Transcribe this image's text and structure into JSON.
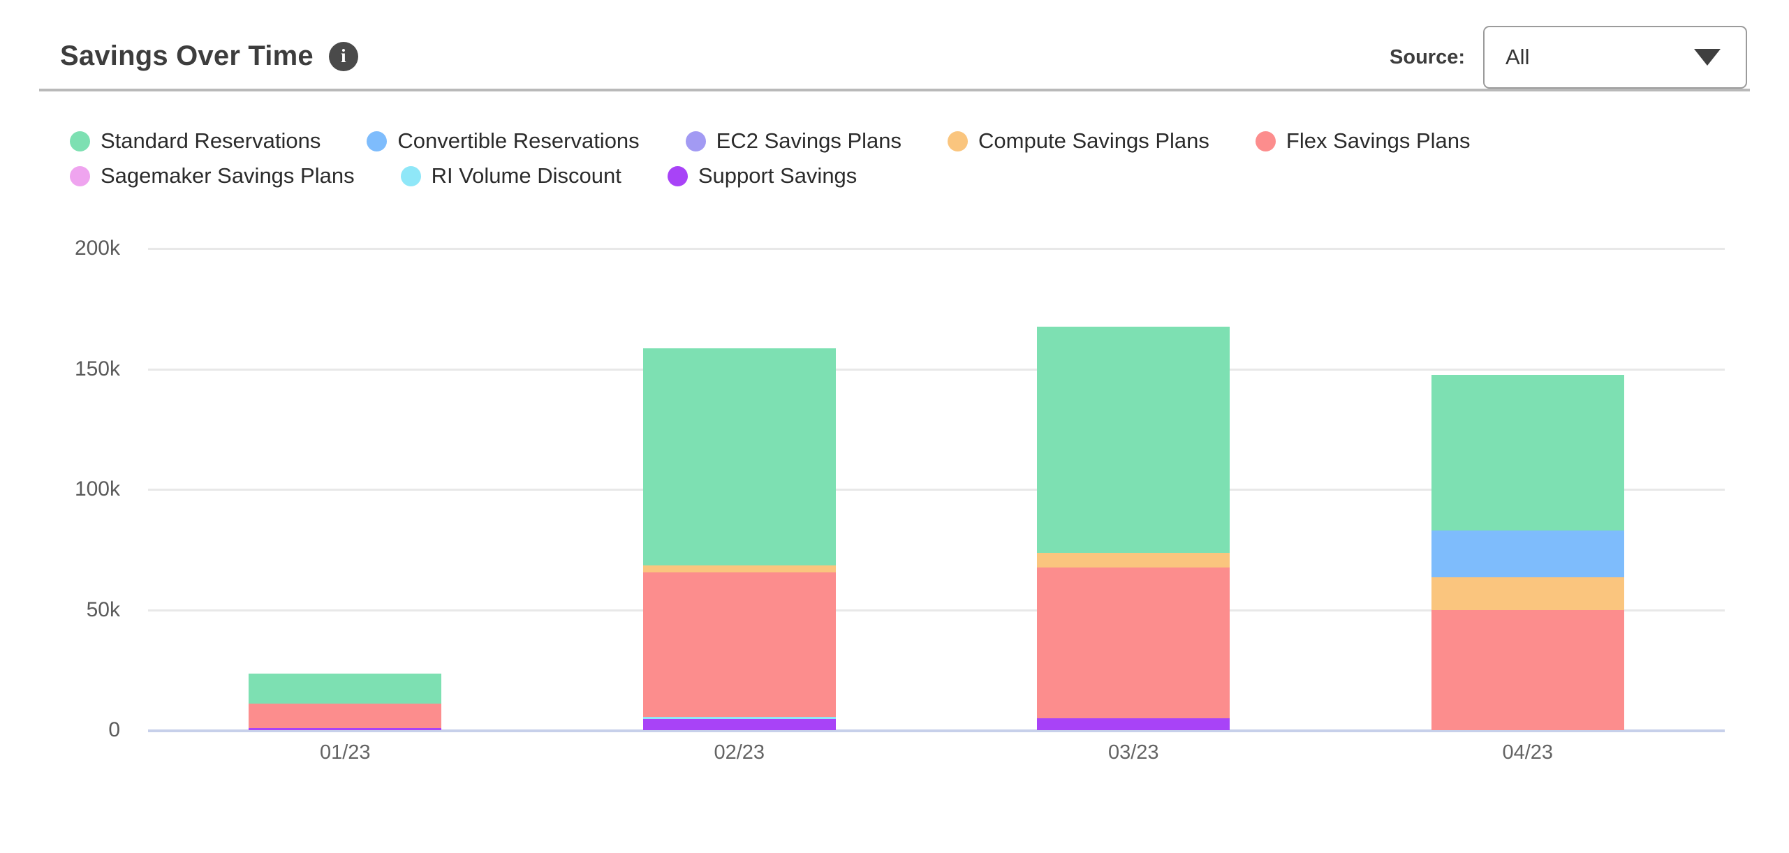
{
  "header": {
    "title": "Savings Over Time",
    "info_icon_glyph": "i"
  },
  "source": {
    "label": "Source:",
    "value": "All"
  },
  "colors": {
    "divider": "#b9b9b9",
    "grid": "#e8e8e8",
    "axis_line": "#c7d0ea",
    "standard_reservations": "#7de0b2",
    "convertible_reservations": "#7ebcfc",
    "ec2_savings_plans": "#a29af3",
    "compute_savings_plans": "#fac57e",
    "flex_savings_plans": "#fc8d8d",
    "sagemaker_savings_plans": "#efa4ef",
    "ri_volume_discount": "#8fe7f8",
    "support_savings": "#a843f7"
  },
  "chart_data": {
    "type": "bar",
    "stacked": true,
    "title": "Savings Over Time",
    "xlabel": "",
    "ylabel": "",
    "unit": "thousands",
    "ylim": [
      0,
      200
    ],
    "grid": true,
    "legend_position": "top",
    "categories": [
      "01/23",
      "02/23",
      "03/23",
      "04/23"
    ],
    "yticks": [
      {
        "label": "200k",
        "value": 200
      },
      {
        "label": "150k",
        "value": 150
      },
      {
        "label": "100k",
        "value": 100
      },
      {
        "label": "50k",
        "value": 50
      },
      {
        "label": "0",
        "value": 0
      }
    ],
    "series": [
      {
        "name": "Standard Reservations",
        "color": "#7de0b2",
        "values": [
          12.5,
          90,
          94,
          64.5
        ]
      },
      {
        "name": "Convertible Reservations",
        "color": "#7ebcfc",
        "values": [
          0,
          0,
          0,
          19.5
        ]
      },
      {
        "name": "EC2 Savings Plans",
        "color": "#a29af3",
        "values": [
          0,
          0,
          0,
          0
        ]
      },
      {
        "name": "Compute Savings Plans",
        "color": "#fac57e",
        "values": [
          0,
          3,
          6,
          13.5
        ]
      },
      {
        "name": "Flex Savings Plans",
        "color": "#fc8d8d",
        "values": [
          10,
          60,
          62.5,
          50
        ]
      },
      {
        "name": "Sagemaker Savings Plans",
        "color": "#efa4ef",
        "values": [
          0,
          0,
          0,
          0
        ]
      },
      {
        "name": "RI Volume Discount",
        "color": "#8fe7f8",
        "values": [
          0,
          1,
          0,
          0
        ]
      },
      {
        "name": "Support Savings",
        "color": "#a843f7",
        "values": [
          1,
          4.5,
          5,
          0
        ]
      }
    ],
    "stack_order_bottom_to_top": [
      7,
      6,
      5,
      4,
      3,
      2,
      1,
      0
    ],
    "totals": [
      23.5,
      158.5,
      167.5,
      147.5
    ],
    "legend_rows": [
      [
        0,
        1,
        2,
        3,
        4
      ],
      [
        5,
        6,
        7
      ]
    ]
  }
}
